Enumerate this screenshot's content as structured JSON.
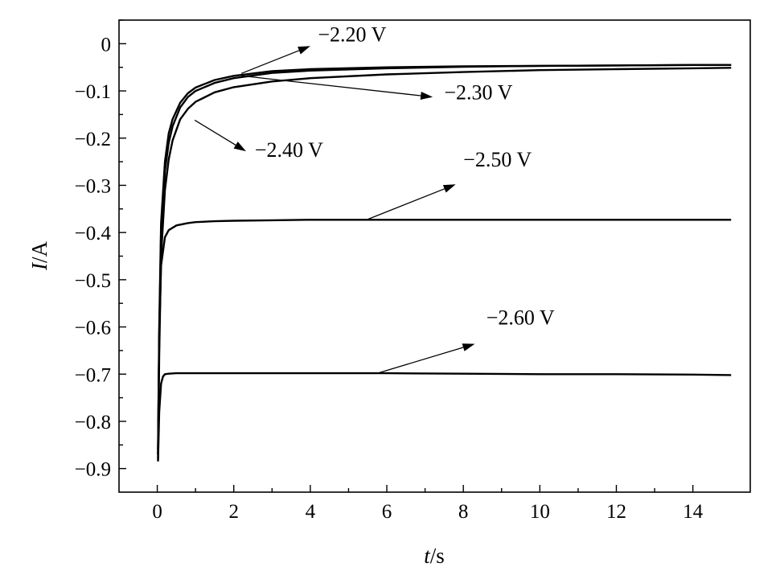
{
  "chart_data": {
    "type": "line",
    "title": "",
    "xlabel": {
      "var": "t",
      "unit": "/s"
    },
    "ylabel": {
      "var": "I",
      "unit": "/A"
    },
    "xlim": [
      -1,
      15.5
    ],
    "ylim": [
      -0.95,
      0.05
    ],
    "x_ticks": [
      0,
      2,
      4,
      6,
      8,
      10,
      12,
      14
    ],
    "x_tick_labels": [
      "0",
      "2",
      "4",
      "6",
      "8",
      "10",
      "12",
      "14"
    ],
    "y_ticks": [
      0,
      -0.1,
      -0.2,
      -0.3,
      -0.4,
      -0.5,
      -0.6,
      -0.7,
      -0.8,
      -0.9
    ],
    "y_tick_labels": [
      "0",
      "−0.1",
      "−0.2",
      "−0.3",
      "−0.4",
      "−0.5",
      "−0.6",
      "−0.7",
      "−0.8",
      "−0.9"
    ],
    "grid": false,
    "series": [
      {
        "name": "−2.20 V",
        "x": [
          0.02,
          0.05,
          0.1,
          0.2,
          0.3,
          0.4,
          0.6,
          0.8,
          1.0,
          1.5,
          2.0,
          3.0,
          4.0,
          6.0,
          8.0,
          10.0,
          12.0,
          14.0,
          15.0
        ],
        "y": [
          -0.86,
          -0.6,
          -0.38,
          -0.25,
          -0.19,
          -0.16,
          -0.125,
          -0.105,
          -0.093,
          -0.077,
          -0.068,
          -0.058,
          -0.054,
          -0.05,
          -0.048,
          -0.047,
          -0.046,
          -0.045,
          -0.045
        ]
      },
      {
        "name": "−2.30 V",
        "x": [
          0.02,
          0.05,
          0.1,
          0.2,
          0.3,
          0.4,
          0.6,
          0.8,
          1.0,
          1.5,
          2.0,
          3.0,
          4.0,
          6.0,
          8.0,
          10.0,
          12.0,
          14.0,
          15.0
        ],
        "y": [
          -0.87,
          -0.62,
          -0.4,
          -0.27,
          -0.21,
          -0.175,
          -0.135,
          -0.113,
          -0.1,
          -0.083,
          -0.073,
          -0.062,
          -0.057,
          -0.052,
          -0.049,
          -0.047,
          -0.046,
          -0.045,
          -0.045
        ]
      },
      {
        "name": "−2.40 V",
        "x": [
          0.02,
          0.05,
          0.1,
          0.2,
          0.3,
          0.4,
          0.6,
          0.8,
          1.0,
          1.5,
          2.0,
          3.0,
          4.0,
          6.0,
          8.0,
          10.0,
          12.0,
          14.0,
          15.0
        ],
        "y": [
          -0.88,
          -0.66,
          -0.45,
          -0.31,
          -0.245,
          -0.205,
          -0.16,
          -0.138,
          -0.123,
          -0.103,
          -0.092,
          -0.08,
          -0.073,
          -0.065,
          -0.06,
          -0.056,
          -0.054,
          -0.052,
          -0.051
        ]
      },
      {
        "name": "−2.50 V",
        "x": [
          0.02,
          0.05,
          0.1,
          0.2,
          0.3,
          0.5,
          0.8,
          1.0,
          1.5,
          2.0,
          3.0,
          4.0,
          6.0,
          8.0,
          10.0,
          12.0,
          14.0,
          15.0
        ],
        "y": [
          -0.87,
          -0.62,
          -0.47,
          -0.41,
          -0.395,
          -0.385,
          -0.38,
          -0.378,
          -0.376,
          -0.375,
          -0.374,
          -0.373,
          -0.373,
          -0.373,
          -0.373,
          -0.373,
          -0.373,
          -0.373
        ]
      },
      {
        "name": "−2.60 V",
        "x": [
          0.02,
          0.05,
          0.1,
          0.15,
          0.2,
          0.3,
          0.5,
          1.0,
          2.0,
          4.0,
          6.0,
          8.0,
          10.0,
          12.0,
          14.0,
          15.0
        ],
        "y": [
          -0.885,
          -0.78,
          -0.72,
          -0.705,
          -0.7,
          -0.699,
          -0.698,
          -0.698,
          -0.698,
          -0.698,
          -0.698,
          -0.699,
          -0.7,
          -0.7,
          -0.701,
          -0.702
        ]
      }
    ],
    "annotations": [
      {
        "text": "−2.20 V",
        "text_x": 4.2,
        "text_y": 0.005,
        "arrow_from_x": 2.2,
        "arrow_from_y": -0.063,
        "arrow_to_x": 4.0,
        "arrow_to_y": -0.005
      },
      {
        "text": "−2.30 V",
        "text_x": 7.5,
        "text_y": -0.118,
        "arrow_from_x": 2.2,
        "arrow_from_y": -0.068,
        "arrow_to_x": 7.2,
        "arrow_to_y": -0.113
      },
      {
        "text": "−2.40 V",
        "text_x": 2.55,
        "text_y": -0.24,
        "arrow_from_x": 0.98,
        "arrow_from_y": -0.162,
        "arrow_to_x": 2.32,
        "arrow_to_y": -0.228
      },
      {
        "text": "−2.50 V",
        "text_x": 8.0,
        "text_y": -0.26,
        "arrow_from_x": 5.5,
        "arrow_from_y": -0.372,
        "arrow_to_x": 7.8,
        "arrow_to_y": -0.298
      },
      {
        "text": "−2.60 V",
        "text_x": 8.6,
        "text_y": -0.595,
        "arrow_from_x": 5.8,
        "arrow_from_y": -0.697,
        "arrow_to_x": 8.3,
        "arrow_to_y": -0.636
      }
    ]
  }
}
